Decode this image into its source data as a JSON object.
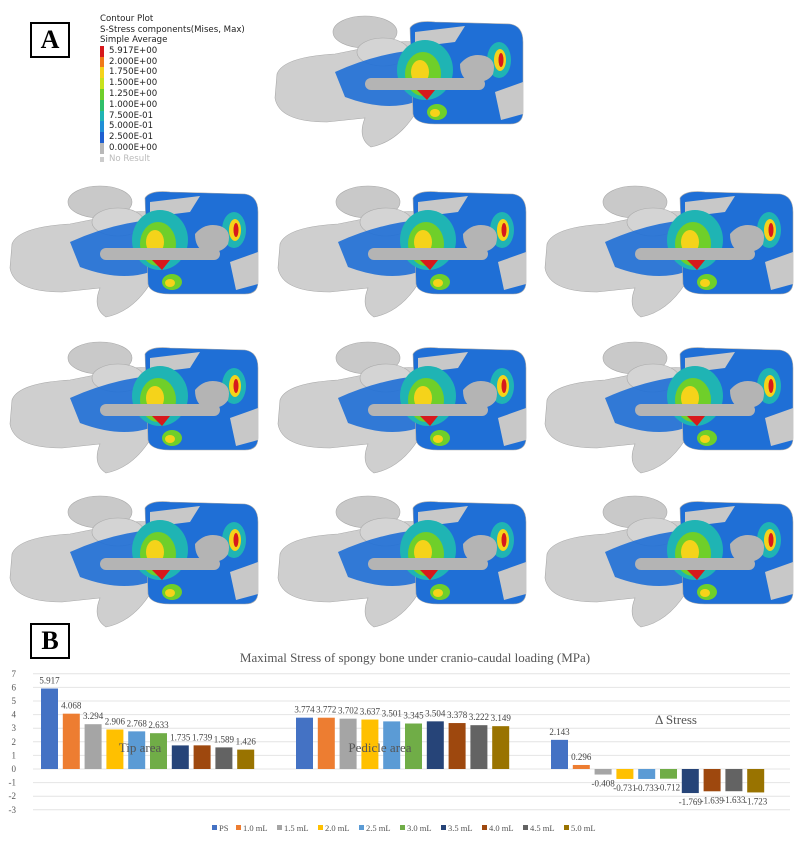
{
  "panel_a": {
    "label": "A",
    "legend": {
      "title_lines": [
        "Contour Plot",
        "S-Stress components(Mises, Max)",
        "Simple Average"
      ],
      "levels": [
        {
          "value": "5.917E+00",
          "color": "#d7191c"
        },
        {
          "value": "2.000E+00",
          "color": "#f07a1a"
        },
        {
          "value": "1.750E+00",
          "color": "#f5d31a"
        },
        {
          "value": "1.500E+00",
          "color": "#c8e21c"
        },
        {
          "value": "1.250E+00",
          "color": "#6fcf2a"
        },
        {
          "value": "1.000E+00",
          "color": "#2fbf6a"
        },
        {
          "value": "7.500E-01",
          "color": "#1fb4b4"
        },
        {
          "value": "5.000E-01",
          "color": "#1f8fd6"
        },
        {
          "value": "2.500E-01",
          "color": "#1f5fd0"
        },
        {
          "value": "0.000E+00",
          "color": "#b8b8b8"
        }
      ],
      "no_result": "No Result"
    },
    "models": [
      "PS",
      "1.0 mL",
      "1.5 mL",
      "2.0 mL",
      "2.5 mL",
      "3.0 mL",
      "3.5 mL",
      "4.0 mL",
      "4.5 mL",
      "5.0 mL"
    ]
  },
  "panel_b": {
    "label": "B"
  },
  "chart_data": {
    "type": "bar",
    "title": "Maximal Stress of spongy bone  under cranio-caudal loading (MPa)",
    "xlabel": "",
    "ylabel": "",
    "ylim": [
      -3,
      7
    ],
    "yticks": [
      "7",
      "6",
      "5",
      "4",
      "3",
      "2",
      "1",
      "0",
      "-1",
      "-2",
      "-3"
    ],
    "grid": true,
    "legend_position": "bottom",
    "categories": [
      "Tip area",
      "Pedicle area",
      "Δ Stress"
    ],
    "series": [
      {
        "name": "PS",
        "color": "#4472c4",
        "values": [
          5.917,
          3.774,
          2.143
        ],
        "labels": [
          "5.917",
          "3.774",
          "2.143"
        ]
      },
      {
        "name": "1.0 mL",
        "color": "#ed7d31",
        "values": [
          4.068,
          3.772,
          0.296
        ],
        "labels": [
          "4.068",
          "3.772",
          "0.296"
        ]
      },
      {
        "name": "1.5 mL",
        "color": "#a5a5a5",
        "values": [
          3.294,
          3.702,
          -0.408
        ],
        "labels": [
          "3.294",
          "3.702",
          "-0.408"
        ]
      },
      {
        "name": "2.0 mL",
        "color": "#ffc000",
        "values": [
          2.906,
          3.637,
          -0.731
        ],
        "labels": [
          "2.906",
          "3.637",
          "-0.731"
        ]
      },
      {
        "name": "2.5 mL",
        "color": "#5b9bd5",
        "values": [
          2.768,
          3.501,
          -0.733
        ],
        "labels": [
          "2.768",
          "3.501",
          "-0.733"
        ]
      },
      {
        "name": "3.0 mL",
        "color": "#70ad47",
        "values": [
          2.633,
          3.345,
          -0.712
        ],
        "labels": [
          "2.633",
          "3.345",
          "-0.712"
        ]
      },
      {
        "name": "3.5 mL",
        "color": "#264478",
        "values": [
          1.735,
          3.504,
          -1.769
        ],
        "labels": [
          "1.735",
          "3.504",
          "-1.769"
        ]
      },
      {
        "name": "4.0 mL",
        "color": "#9e480e",
        "values": [
          1.739,
          3.378,
          -1.639
        ],
        "labels": [
          "1.739",
          "3.378",
          "-1.639"
        ]
      },
      {
        "name": "4.5 mL",
        "color": "#636363",
        "values": [
          1.589,
          3.222,
          -1.633
        ],
        "labels": [
          "1.589",
          "3.222",
          "-1.633"
        ]
      },
      {
        "name": "5.0 mL",
        "color": "#997300",
        "values": [
          1.426,
          3.149,
          -1.723
        ],
        "labels": [
          "1.426",
          "3.149",
          "-1.723"
        ]
      }
    ]
  }
}
